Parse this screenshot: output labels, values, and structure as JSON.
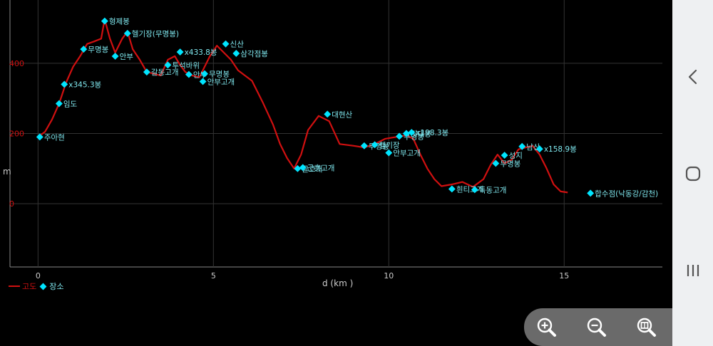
{
  "chart_data": {
    "type": "line",
    "xlabel": "d (km )",
    "ylabel": "m",
    "xlim": [
      -0.8,
      17.8
    ],
    "ylim": [
      -180,
      580
    ],
    "x_ticks": [
      0,
      5,
      10,
      15
    ],
    "y_ticks": [
      0,
      200,
      400
    ],
    "x_tick_labels": [
      "0",
      "5",
      "10",
      "15"
    ],
    "y_tick_labels": [
      "0",
      "200",
      "400"
    ],
    "grid": true,
    "legend_position": "bottom-left",
    "series": [
      {
        "name": "고도",
        "color": "#d01010",
        "points": [
          [
            0.0,
            190
          ],
          [
            0.2,
            205
          ],
          [
            0.4,
            240
          ],
          [
            0.6,
            285
          ],
          [
            0.8,
            345
          ],
          [
            1.0,
            390
          ],
          [
            1.2,
            420
          ],
          [
            1.4,
            455
          ],
          [
            1.6,
            462
          ],
          [
            1.8,
            470
          ],
          [
            1.9,
            525
          ],
          [
            2.05,
            470
          ],
          [
            2.2,
            430
          ],
          [
            2.4,
            470
          ],
          [
            2.55,
            490
          ],
          [
            2.7,
            440
          ],
          [
            2.9,
            410
          ],
          [
            3.1,
            375
          ],
          [
            3.3,
            370
          ],
          [
            3.5,
            365
          ],
          [
            3.7,
            410
          ],
          [
            3.9,
            420
          ],
          [
            4.05,
            395
          ],
          [
            4.2,
            375
          ],
          [
            4.4,
            365
          ],
          [
            4.6,
            360
          ],
          [
            4.75,
            390
          ],
          [
            4.9,
            420
          ],
          [
            5.1,
            450
          ],
          [
            5.3,
            430
          ],
          [
            5.5,
            410
          ],
          [
            5.7,
            380
          ],
          [
            5.9,
            365
          ],
          [
            6.1,
            350
          ],
          [
            6.4,
            290
          ],
          [
            6.7,
            225
          ],
          [
            6.9,
            170
          ],
          [
            7.1,
            130
          ],
          [
            7.3,
            100
          ],
          [
            7.5,
            140
          ],
          [
            7.7,
            210
          ],
          [
            8.0,
            250
          ],
          [
            8.3,
            235
          ],
          [
            8.6,
            170
          ],
          [
            9.0,
            165
          ],
          [
            9.3,
            160
          ],
          [
            9.6,
            170
          ],
          [
            9.9,
            185
          ],
          [
            10.2,
            190
          ],
          [
            10.5,
            195
          ],
          [
            10.7,
            185
          ],
          [
            10.9,
            140
          ],
          [
            11.1,
            100
          ],
          [
            11.3,
            70
          ],
          [
            11.5,
            50
          ],
          [
            11.8,
            55
          ],
          [
            12.1,
            62
          ],
          [
            12.4,
            48
          ],
          [
            12.7,
            70
          ],
          [
            12.9,
            110
          ],
          [
            13.1,
            140
          ],
          [
            13.3,
            115
          ],
          [
            13.5,
            125
          ],
          [
            13.7,
            155
          ],
          [
            13.9,
            160
          ],
          [
            14.1,
            165
          ],
          [
            14.3,
            140
          ],
          [
            14.5,
            100
          ],
          [
            14.7,
            55
          ],
          [
            14.9,
            35
          ],
          [
            15.1,
            32
          ]
        ]
      }
    ],
    "places": {
      "name": "장소",
      "color": "#00e5ff",
      "points": [
        {
          "x": 0.05,
          "y": 190,
          "label": "주아현"
        },
        {
          "x": 0.6,
          "y": 285,
          "label": "임도"
        },
        {
          "x": 0.75,
          "y": 340,
          "label": "x345.3봉"
        },
        {
          "x": 1.3,
          "y": 440,
          "label": "무명봉"
        },
        {
          "x": 1.9,
          "y": 520,
          "label": "형제봉"
        },
        {
          "x": 2.2,
          "y": 420,
          "label": "안부"
        },
        {
          "x": 2.55,
          "y": 485,
          "label": "헬기장(무명봉)"
        },
        {
          "x": 3.1,
          "y": 375,
          "label": "갈동고개"
        },
        {
          "x": 3.7,
          "y": 395,
          "label": "투석바위"
        },
        {
          "x": 4.05,
          "y": 432,
          "label": "x433.8봉"
        },
        {
          "x": 4.3,
          "y": 368,
          "label": "안부"
        },
        {
          "x": 4.75,
          "y": 370,
          "label": "무명봉"
        },
        {
          "x": 4.7,
          "y": 348,
          "label": "안부고개"
        },
        {
          "x": 5.35,
          "y": 455,
          "label": "신산"
        },
        {
          "x": 5.65,
          "y": 428,
          "label": "삼각점봉"
        },
        {
          "x": 7.4,
          "y": 100,
          "label": "골고개"
        },
        {
          "x": 7.55,
          "y": 103,
          "label": "군흥고개"
        },
        {
          "x": 8.25,
          "y": 255,
          "label": "대현산"
        },
        {
          "x": 9.3,
          "y": 165,
          "label": "무명봉"
        },
        {
          "x": 9.6,
          "y": 168,
          "label": "헬기장"
        },
        {
          "x": 10.0,
          "y": 145,
          "label": "안부고개"
        },
        {
          "x": 10.3,
          "y": 192,
          "label": "무명봉"
        },
        {
          "x": 10.5,
          "y": 200,
          "label": "깃대봉"
        },
        {
          "x": 10.65,
          "y": 203,
          "label": "x198.3봉"
        },
        {
          "x": 11.8,
          "y": 42,
          "label": "흰티고개"
        },
        {
          "x": 12.45,
          "y": 40,
          "label": "독동고개"
        },
        {
          "x": 13.05,
          "y": 115,
          "label": "무명봉"
        },
        {
          "x": 13.3,
          "y": 138,
          "label": "성지"
        },
        {
          "x": 13.8,
          "y": 163,
          "label": "남산"
        },
        {
          "x": 14.3,
          "y": 156,
          "label": "x158.9봉"
        },
        {
          "x": 15.75,
          "y": 30,
          "label": "합수점(낙동강/감천)"
        }
      ]
    }
  },
  "colors": {
    "background": "#000000",
    "line": "#d01010",
    "place_marker": "#00e5ff",
    "place_label": "#7fe7ee",
    "grid": "#333333",
    "nav_bar": "#eef0f2",
    "zoom_panel": "#6a6a6a"
  },
  "zoom_controls": {
    "zoom_in_icon": "zoom-in-icon",
    "zoom_out_icon": "zoom-out-icon",
    "zoom_fit_icon": "zoom-fit-icon"
  },
  "nav": {
    "back_icon": "back-icon",
    "home_icon": "home-icon",
    "recents_icon": "recents-icon"
  }
}
